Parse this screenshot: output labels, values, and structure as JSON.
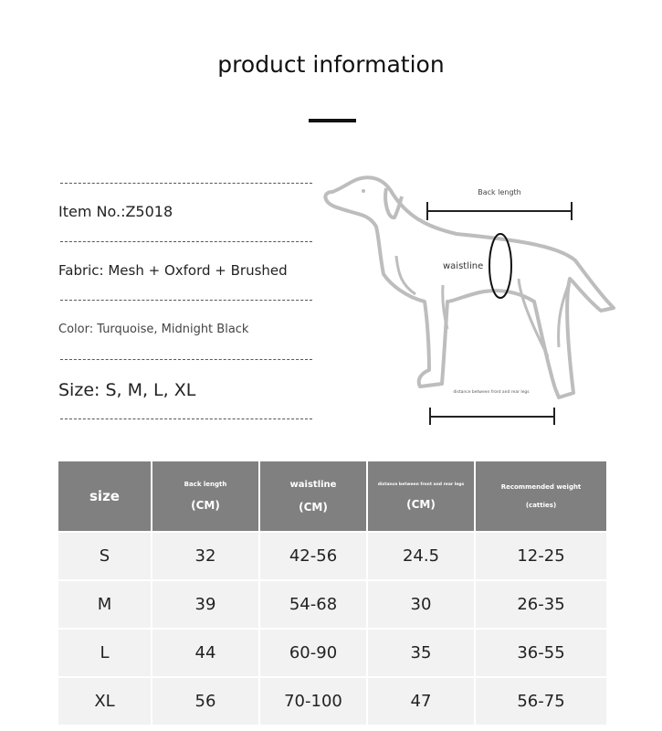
{
  "title": "product information",
  "info": {
    "item": "Item No.:Z5018",
    "fabric": "Fabric: Mesh + Oxford + Brushed",
    "color": "Color: Turquoise, Midnight Black",
    "size": "Size: S, M, L, XL"
  },
  "diagram": {
    "back_length": "Back length",
    "waistline": "waistline",
    "leg_distance": "distance between front and rear legs"
  },
  "table": {
    "headers": [
      {
        "label": "size"
      },
      {
        "label": "Back length",
        "unit": "(CM)"
      },
      {
        "label": "waistline",
        "unit": "(CM)"
      },
      {
        "label": "distance between front and rear legs",
        "unit": "(CM)"
      },
      {
        "label": "Recommended weight",
        "unit": "(catties)"
      }
    ],
    "rows": [
      [
        "S",
        "32",
        "42-56",
        "24.5",
        "12-25"
      ],
      [
        "M",
        "39",
        "54-68",
        "30",
        "26-35"
      ],
      [
        "L",
        "44",
        "60-90",
        "35",
        "36-55"
      ],
      [
        "XL",
        "56",
        "70-100",
        "47",
        "56-75"
      ]
    ]
  }
}
